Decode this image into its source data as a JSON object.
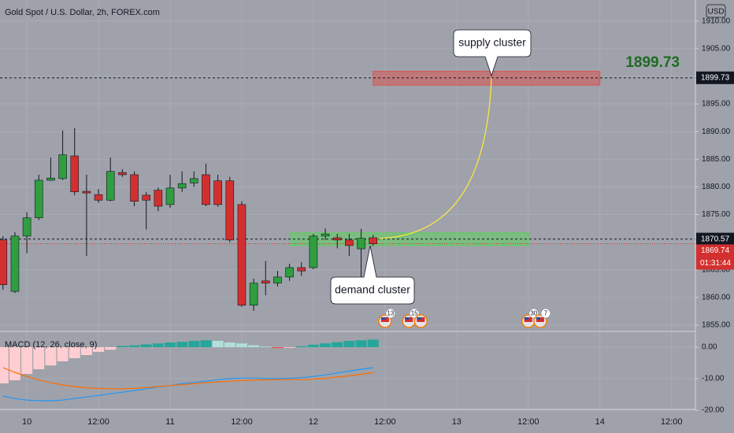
{
  "chart_data": {
    "type": "candlestick",
    "title": "Gold Spot / U.S. Dollar, 2h, FOREX.com",
    "currency": "USD",
    "x": [
      -4,
      -2,
      0,
      2,
      4,
      6,
      8,
      10,
      12,
      14,
      16,
      18,
      20,
      22,
      24,
      26,
      28,
      30,
      32,
      34,
      36,
      38,
      40,
      42,
      44,
      46,
      48,
      50,
      52,
      54,
      56,
      58
    ],
    "open": [
      1870.4,
      1861.1,
      1871.1,
      1874.4,
      1881.2,
      1881.5,
      1885.6,
      1879.2,
      1878.6,
      1877.6,
      1882.6,
      1882.2,
      1878.5,
      1879.4,
      1876.8,
      1879.8,
      1880.7,
      1882.2,
      1881.1,
      1881.1,
      1876.8,
      1858.6,
      1863.0,
      1862.6,
      1863.7,
      1865.4,
      1865.4,
      1871.1,
      1870.8,
      1870.4,
      1868.8,
      1870.8
    ],
    "high": [
      1871.1,
      1871.8,
      1875.4,
      1882.2,
      1885.3,
      1890.2,
      1890.6,
      1882.2,
      1879.6,
      1885.3,
      1883.2,
      1882.8,
      1879.1,
      1879.9,
      1882.2,
      1882.8,
      1882.8,
      1884.2,
      1882.2,
      1881.8,
      1877.4,
      1863.4,
      1866.6,
      1864.8,
      1866.1,
      1866.4,
      1871.5,
      1872.5,
      1871.5,
      1871.5,
      1872.4,
      1871.3
    ],
    "low": [
      1861.4,
      1860.8,
      1868.0,
      1874.0,
      1881.1,
      1881.2,
      1878.5,
      1867.5,
      1877.1,
      1877.4,
      1881.8,
      1876.5,
      1872.3,
      1875.6,
      1876.2,
      1879.1,
      1880.0,
      1876.5,
      1876.4,
      1870.0,
      1858.3,
      1857.6,
      1860.4,
      1862.0,
      1863.0,
      1863.9,
      1865.1,
      1870.4,
      1868.9,
      1867.5,
      1863.7,
      1869.3
    ],
    "close": [
      1862.3,
      1871.1,
      1874.4,
      1881.2,
      1881.6,
      1885.8,
      1879.1,
      1878.9,
      1877.6,
      1882.8,
      1882.2,
      1877.4,
      1877.6,
      1876.5,
      1879.8,
      1880.6,
      1881.5,
      1876.8,
      1876.8,
      1870.4,
      1858.6,
      1862.6,
      1862.6,
      1863.7,
      1865.4,
      1864.8,
      1871.1,
      1871.5,
      1870.4,
      1869.4,
      1870.7,
      1869.7
    ],
    "up_color": "#2e9e3e",
    "down_color": "#d32f2f",
    "xlim": [
      -4.5,
      112
    ],
    "xticks": [
      {
        "value": 0,
        "label": "10"
      },
      {
        "value": 12,
        "label": "12:00"
      },
      {
        "value": 24,
        "label": "11"
      },
      {
        "value": 36,
        "label": "12:00"
      },
      {
        "value": 48,
        "label": "12"
      },
      {
        "value": 60,
        "label": "12:00"
      },
      {
        "value": 72,
        "label": "13"
      },
      {
        "value": 84,
        "label": "12:00"
      },
      {
        "value": 96,
        "label": "14"
      },
      {
        "value": 108,
        "label": "12:00"
      }
    ],
    "ylim": [
      1854,
      1913.8
    ],
    "yticks": [
      {
        "value": 1855,
        "label": "1855.00"
      },
      {
        "value": 1860,
        "label": "1860.00"
      },
      {
        "value": 1865,
        "label": "1865.00"
      },
      {
        "value": 1870,
        "label": "1870.00"
      },
      {
        "value": 1875,
        "label": "1875.00"
      },
      {
        "value": 1880,
        "label": "1880.00"
      },
      {
        "value": 1885,
        "label": "1885.00"
      },
      {
        "value": 1890,
        "label": "1890.00"
      },
      {
        "value": 1895,
        "label": "1895.00"
      },
      {
        "value": 1900,
        "label": "1900.00"
      },
      {
        "value": 1905,
        "label": "1905.00"
      },
      {
        "value": 1910,
        "label": "1910.00"
      }
    ],
    "grid": true,
    "price_lines": [
      {
        "value": 1899.73,
        "color": "#131722"
      },
      {
        "value": 1870.57,
        "color": "#131722"
      },
      {
        "value": 1869.74,
        "color": "#d32f2f"
      }
    ],
    "countdown": "01:31:44",
    "zones": [
      {
        "label": "supply cluster",
        "x": [
          58,
          96
        ],
        "y": [
          1898.4,
          1900.9
        ],
        "color": "#d9534f"
      },
      {
        "label": "demand cluster",
        "x": [
          44,
          84
        ],
        "y": [
          1869.4,
          1871.7
        ],
        "color": "#5fcf5f"
      }
    ],
    "highlight_color": "#1e6b22",
    "events": [
      {
        "x": 60,
        "count": 13
      },
      {
        "x": 64,
        "count": 15
      },
      {
        "x": 66
      },
      {
        "x": 84,
        "count": 30
      },
      {
        "x": 86,
        "count": 7
      }
    ],
    "indicator": {
      "type": "macd",
      "label": "MACD (12, 26, close, 9)",
      "histogram": [
        -11.5,
        -10.5,
        -8.5,
        -7,
        -5.8,
        -4.5,
        -3.5,
        -2.5,
        -1.5,
        -0.8,
        0.4,
        0.6,
        0.9,
        1.2,
        1.5,
        1.7,
        2.0,
        2.2,
        2.0,
        1.5,
        1.2,
        0.6,
        0.2,
        -0.3,
        -0.2,
        0.3,
        0.8,
        1.2,
        1.6,
        2.0,
        2.2,
        2.4
      ],
      "histogram_colors": [
        "#26a69a",
        "#b2dfdb",
        "#ef5350",
        "#ffcdd2"
      ],
      "macd": [
        -15.5,
        -16.3,
        -16.8,
        -17,
        -17,
        -16.8,
        -16.3,
        -15.8,
        -15.3,
        -14.8,
        -14.3,
        -13.8,
        -13.2,
        -12.6,
        -12.2,
        -11.6,
        -11.2,
        -10.8,
        -10.3,
        -10,
        -9.8,
        -9.8,
        -10,
        -10,
        -9.9,
        -9.7,
        -9.3,
        -8.8,
        -8.2,
        -7.6,
        -7,
        -6.5
      ],
      "signal": [
        -6.5,
        -8,
        -9.3,
        -10.4,
        -11.3,
        -12,
        -12.5,
        -12.9,
        -13.1,
        -13.2,
        -13.2,
        -13.1,
        -12.8,
        -12.5,
        -12.2,
        -11.9,
        -11.6,
        -11.3,
        -11,
        -10.8,
        -10.6,
        -10.4,
        -10.4,
        -10.3,
        -10.3,
        -10.3,
        -10.1,
        -9.9,
        -9.5,
        -9.1,
        -8.6,
        -8.1
      ],
      "macd_color": "#2196f3",
      "signal_color": "#ff6d00",
      "ylim": [
        -19.5,
        4.75
      ],
      "yticks": [
        {
          "value": 0,
          "label": "0.00"
        },
        {
          "value": -10,
          "label": "-10.00"
        },
        {
          "value": -20,
          "label": "-20.00"
        }
      ]
    }
  }
}
